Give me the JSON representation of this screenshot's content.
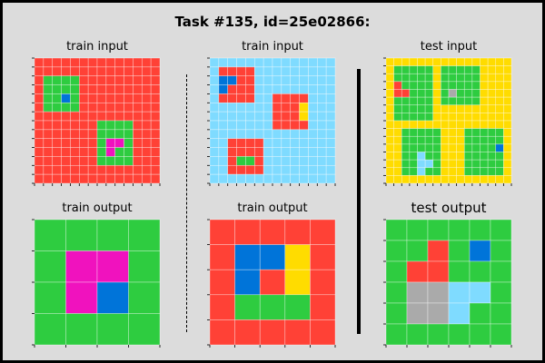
{
  "title": "Task #135, id=25e02866:",
  "colors": {
    "R": "#ff4136",
    "G": "#2ecc40",
    "B": "#0074d9",
    "L": "#7fdbff",
    "Y": "#ffdc00",
    "M": "#f012be",
    "A": "#aaaaaa",
    "K": "#111111",
    "background": "#dcdcdc"
  },
  "panels": [
    {
      "label": "train input",
      "grid": [
        "RRRRRRRRRRRRRR",
        "RRRRRRRRRRRRRR",
        "RGGGGRRRRRRRRR",
        "RGGGGRRRRRRRRR",
        "RGGBGRRRRRRRRR",
        "RGGGGRRRRRRRRR",
        "RRRRRRRRRRRRRR",
        "RRRRRRRGGGGRRR",
        "RRRRRRRGGGGRRR",
        "RRRRRRRGMMGRRR",
        "RRRRRRRGMGGRRR",
        "RRRRRRRGGGGRRR",
        "RRRRRRRRRRRRRR",
        "RRRRRRRRRRRRRR"
      ]
    },
    {
      "label": "train input",
      "grid": [
        "LLLLLLLLLLLLLL",
        "LRRRRLLLLLLLLL",
        "LBBRRLLLLLLLLL",
        "LBRRRLLLLLLLLL",
        "LRRRRLLRRRRLLL",
        "LLLLLLLRRRYLLL",
        "LLLLLLLRRRYLLL",
        "LLLLLLLRRRRLLL",
        "LLLLLLLLLLLLLL",
        "LLRRRRLLLLLLLL",
        "LLRRRRLLLLLLLL",
        "LLRGGRLLLLLLLL",
        "LLRRRRLLLLLLLL",
        "LLLLLLLLLLLLLL"
      ]
    },
    {
      "label": "test input",
      "grid": [
        "YYYYYYYYYYYYYYYY",
        "YGGGGGYGGGGGYYYY",
        "YGGGGGYGGGGGYYYY",
        "YRGGGGYGGGGGYYYY",
        "YRRGGGYGAGGGYYYY",
        "YGGGGGYGGGGGYYYY",
        "YGGGGGYYYYYYYYYY",
        "YGGGGGYYYYYYYYYY",
        "YYYYYYYYYYYYYYYY",
        "YYGGGGGYYYGGGGGY",
        "YYGGGGGYYYGGGGGY",
        "YYGGGGGYYYGGGGBY",
        "YYGGLGGYYYGGGGGY",
        "YYGGLLGYYYGGGGGY",
        "YYGGLGGYYYGGGGGY",
        "YYYYYYYYYYYYYYYY"
      ]
    },
    {
      "label": "train output",
      "grid": [
        "GGGG",
        "GMMG",
        "GMBG",
        "GGGG"
      ]
    },
    {
      "label": "train output",
      "grid": [
        "RRRRR",
        "RBBYR",
        "RBRYR",
        "RGGGR",
        "RRRRR"
      ]
    },
    {
      "label": "test output",
      "grid": [
        "GGGGGG",
        "GGRGBG",
        "GRRGGG",
        "GAALLG",
        "GAALGG",
        "GGGGGG"
      ]
    }
  ]
}
